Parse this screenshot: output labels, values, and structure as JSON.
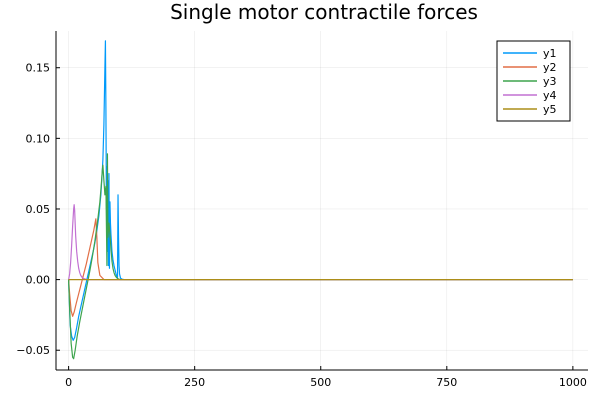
{
  "chart_data": {
    "type": "line",
    "title": "Single motor contractile forces",
    "xlabel": "",
    "ylabel": "",
    "xlim": [
      -25,
      1030
    ],
    "ylim": [
      -0.064,
      0.176
    ],
    "xticks": [
      0,
      250,
      500,
      750,
      1000
    ],
    "yticks": [
      -0.05,
      0.0,
      0.05,
      0.1,
      0.15
    ],
    "xtick_labels": [
      "0",
      "250",
      "500",
      "750",
      "1000"
    ],
    "ytick_labels": [
      "−0.05",
      "0.00",
      "0.05",
      "0.10",
      "0.15"
    ],
    "grid": true,
    "legend_position": "top-right",
    "series": [
      {
        "name": "y1",
        "color": "#009AFA",
        "x": [
          0,
          3,
          6,
          9,
          12,
          16,
          20,
          25,
          30,
          35,
          40,
          45,
          50,
          55,
          60,
          64,
          66,
          68,
          70,
          72,
          73,
          74,
          75,
          76,
          77,
          78,
          79,
          80,
          81,
          82,
          83,
          84,
          85,
          86,
          88,
          90,
          92,
          94,
          96,
          97,
          98,
          99,
          100,
          101,
          103,
          106,
          110,
          1000
        ],
        "y": [
          0.0,
          -0.032,
          -0.04,
          -0.043,
          -0.041,
          -0.034,
          -0.026,
          -0.018,
          -0.01,
          -0.002,
          0.006,
          0.014,
          0.022,
          0.032,
          0.045,
          0.06,
          0.072,
          0.085,
          0.11,
          0.15,
          0.169,
          0.12,
          0.05,
          0.08,
          0.02,
          0.07,
          0.01,
          0.075,
          0.008,
          0.055,
          0.04,
          0.032,
          0.026,
          0.02,
          0.014,
          0.01,
          0.007,
          0.004,
          0.002,
          0.0015,
          0.06,
          0.03,
          0.01,
          0.004,
          0.001,
          0.0003,
          0.0,
          0.0
        ]
      },
      {
        "name": "y2",
        "color": "#E26F46",
        "x": [
          0,
          2,
          5,
          8,
          11,
          15,
          20,
          25,
          30,
          35,
          40,
          45,
          50,
          54,
          56,
          58,
          62,
          70,
          1000
        ],
        "y": [
          0.0,
          -0.01,
          -0.022,
          -0.026,
          -0.023,
          -0.017,
          -0.01,
          -0.003,
          0.004,
          0.011,
          0.019,
          0.027,
          0.035,
          0.043,
          0.03,
          0.012,
          0.003,
          0.0,
          0.0
        ]
      },
      {
        "name": "y3",
        "color": "#3DA44D",
        "x": [
          0,
          2,
          5,
          8,
          10,
          13,
          17,
          22,
          27,
          32,
          37,
          42,
          47,
          52,
          57,
          62,
          65,
          67,
          68,
          70,
          72,
          74,
          76,
          77,
          78,
          80,
          82,
          84,
          86,
          88,
          90,
          92,
          95,
          98,
          102,
          1000
        ],
        "y": [
          0.0,
          -0.02,
          -0.045,
          -0.055,
          -0.056,
          -0.05,
          -0.04,
          -0.03,
          -0.021,
          -0.012,
          -0.003,
          0.006,
          0.016,
          0.027,
          0.04,
          0.055,
          0.068,
          0.078,
          0.081,
          0.07,
          0.06,
          0.066,
          0.01,
          0.089,
          0.03,
          0.04,
          0.032,
          0.022,
          0.013,
          0.008,
          0.005,
          0.003,
          0.0015,
          0.0006,
          0.0,
          0.0
        ]
      },
      {
        "name": "y4",
        "color": "#C271D2",
        "x": [
          0,
          2,
          4,
          6,
          8,
          10,
          11,
          12,
          13,
          14,
          16,
          18,
          20,
          22,
          24,
          27,
          30,
          35,
          40,
          1000
        ],
        "y": [
          0.0,
          0.004,
          0.012,
          0.024,
          0.038,
          0.05,
          0.053,
          0.049,
          0.04,
          0.031,
          0.02,
          0.013,
          0.008,
          0.005,
          0.003,
          0.0015,
          0.0007,
          0.0002,
          0.0,
          0.0
        ]
      },
      {
        "name": "y5",
        "color": "#AC8D18",
        "x": [
          0,
          1000
        ],
        "y": [
          0.0,
          0.0
        ]
      }
    ]
  }
}
